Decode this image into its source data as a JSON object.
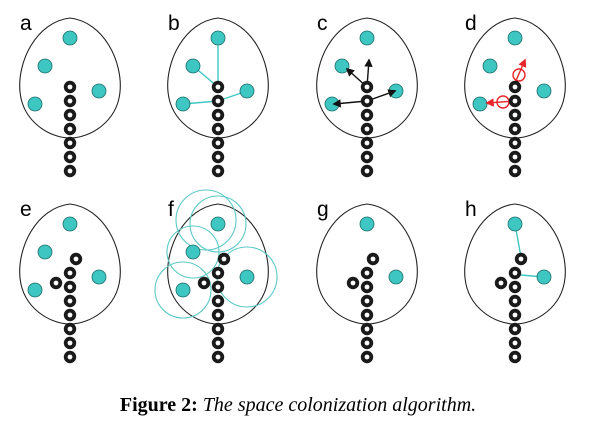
{
  "panels": [
    {
      "label": "a",
      "step": "attractors"
    },
    {
      "label": "b",
      "step": "associate"
    },
    {
      "label": "c",
      "step": "directions"
    },
    {
      "label": "d",
      "step": "average"
    },
    {
      "label": "e",
      "step": "grow"
    },
    {
      "label": "f",
      "step": "kill-zones"
    },
    {
      "label": "g",
      "step": "removed"
    },
    {
      "label": "h",
      "step": "repeat"
    }
  ],
  "caption": {
    "number": "Figure 2:",
    "text": "The space colonization algorithm."
  },
  "colors": {
    "attractor": "#3ec7c2",
    "attractor_stroke": "#1d6e6b",
    "node": "#1a1a1a",
    "influence_line": "#3ec7c2",
    "new_direction": "#e8232a",
    "kill_zone": "#5cc9c6",
    "outline": "#222222"
  }
}
